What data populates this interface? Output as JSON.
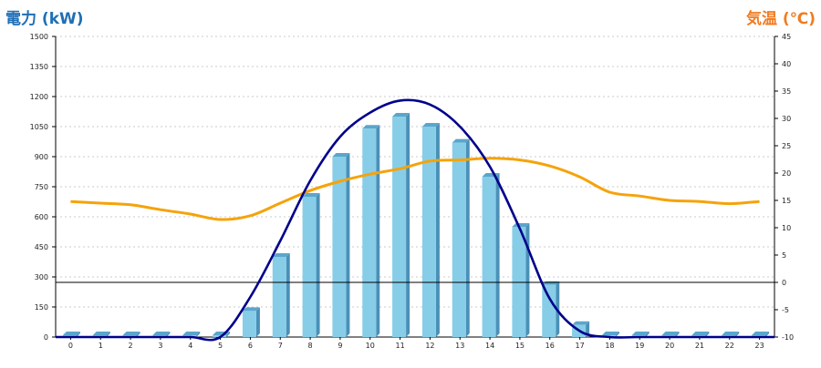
{
  "chart_data": {
    "type": "bar",
    "left_axis": {
      "label": "電力 (kW)",
      "min": 0,
      "max": 1500,
      "ticks": [
        0,
        150,
        300,
        450,
        600,
        750,
        900,
        1050,
        1200,
        1350,
        1500
      ]
    },
    "right_axis": {
      "label": "気温 (℃)",
      "min": -10,
      "max": 45,
      "ticks": [
        -10,
        -5,
        0,
        5,
        10,
        15,
        20,
        25,
        30,
        35,
        40,
        45
      ]
    },
    "categories": [
      "0",
      "1",
      "2",
      "3",
      "4",
      "5",
      "6",
      "7",
      "8",
      "9",
      "10",
      "11",
      "12",
      "13",
      "14",
      "15",
      "16",
      "17",
      "18",
      "19",
      "20",
      "21",
      "22",
      "23"
    ],
    "series": [
      {
        "kind": "bar",
        "axis": "left",
        "color": "#87cde8",
        "values": [
          0,
          0,
          0,
          0,
          0,
          0,
          130,
          400,
          700,
          900,
          1040,
          1100,
          1050,
          970,
          800,
          550,
          260,
          60,
          0,
          0,
          0,
          0,
          0,
          0
        ]
      },
      {
        "kind": "line",
        "axis": "left",
        "color": "#00008b",
        "values": [
          0,
          0,
          0,
          0,
          0,
          0,
          200,
          480,
          780,
          1000,
          1120,
          1180,
          1160,
          1050,
          850,
          540,
          190,
          30,
          0,
          0,
          0,
          0,
          0,
          0
        ]
      },
      {
        "kind": "line",
        "axis": "right",
        "color": "#f5a30a",
        "values": [
          14.8,
          14.5,
          14.2,
          13.3,
          12.5,
          11.5,
          12.2,
          14.5,
          16.8,
          18.5,
          19.8,
          20.8,
          22.2,
          22.4,
          22.7,
          22.4,
          21.3,
          19.3,
          16.5,
          15.8,
          15.0,
          14.8,
          14.4,
          14.8
        ]
      }
    ],
    "grid": true,
    "reference_line": {
      "axis": "right",
      "value": 0
    }
  }
}
